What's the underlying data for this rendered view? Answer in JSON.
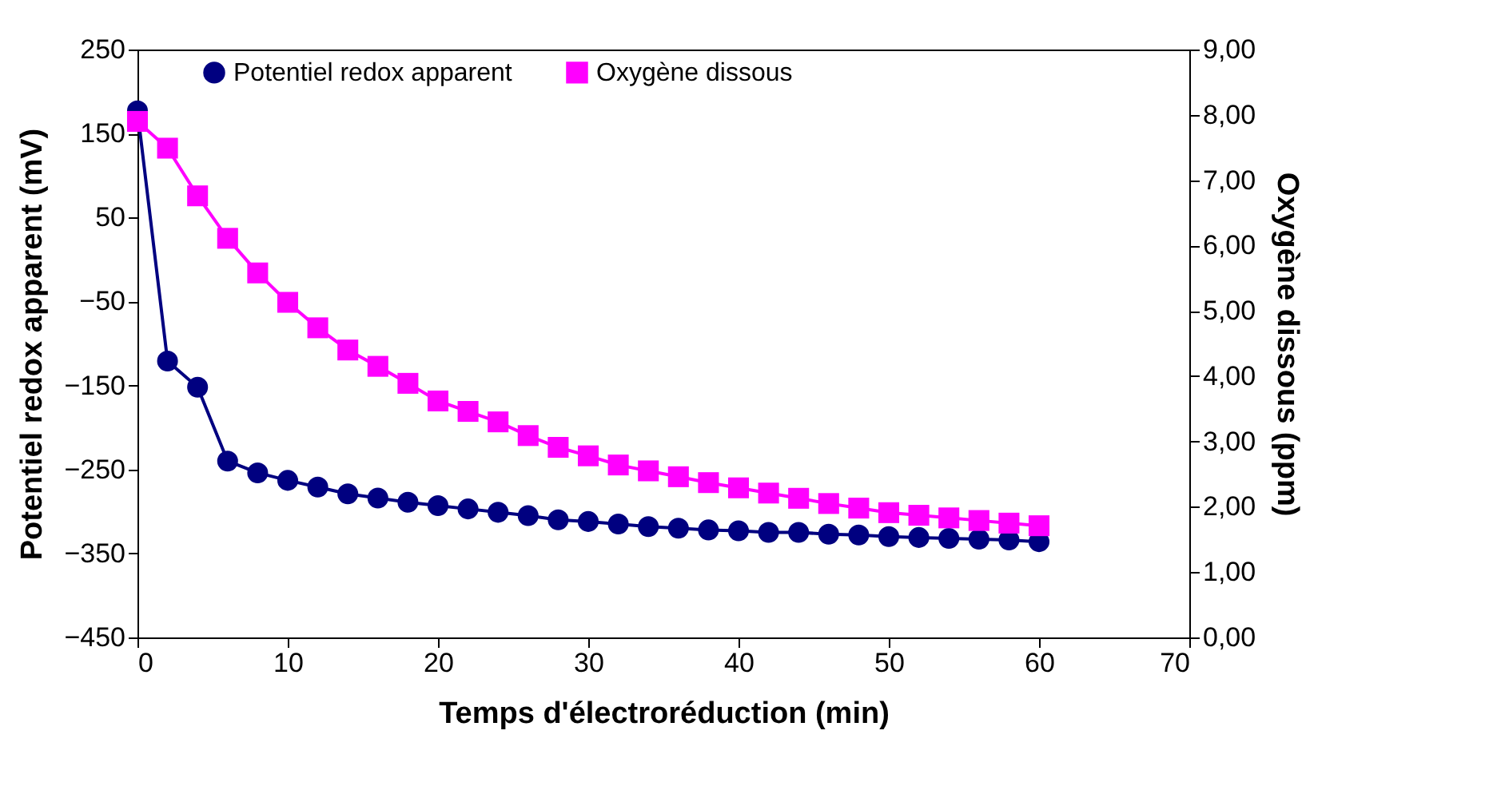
{
  "chart_data": {
    "type": "line",
    "xlabel": "Temps d'électroréduction (min)",
    "ylabel": "Potentiel redox apparent (mV)",
    "y2label": "Oxygène dissous (ppm)",
    "x": [
      0,
      2,
      4,
      6,
      8,
      10,
      12,
      14,
      16,
      18,
      20,
      22,
      24,
      26,
      28,
      30,
      32,
      34,
      36,
      38,
      40,
      42,
      44,
      46,
      48,
      50,
      52,
      54,
      56,
      58,
      60
    ],
    "series": [
      {
        "name": "Potentiel redox apparent",
        "color": "#000080",
        "marker": "circle",
        "values": [
          177,
          -121,
          -152,
          -240,
          -254,
          -263,
          -271,
          -279,
          -284,
          -289,
          -293,
          -297,
          -301,
          -305,
          -310,
          -312,
          -315,
          -318,
          -320,
          -322,
          -323,
          -325,
          -325,
          -327,
          -328,
          -330,
          -331,
          -332,
          -333,
          -334,
          -336
        ]
      },
      {
        "name": "Oxygène dissous",
        "color": "#ff00ff",
        "marker": "square",
        "axis": "y2",
        "values": [
          7.9,
          7.49,
          6.76,
          6.11,
          5.58,
          5.13,
          4.74,
          4.4,
          4.15,
          3.89,
          3.62,
          3.46,
          3.3,
          3.09,
          2.91,
          2.78,
          2.64,
          2.55,
          2.46,
          2.37,
          2.29,
          2.21,
          2.13,
          2.05,
          1.98,
          1.91,
          1.87,
          1.83,
          1.79,
          1.75,
          1.71
        ]
      }
    ],
    "xlim": [
      0,
      70
    ],
    "xticks": [
      0,
      10,
      20,
      30,
      40,
      50,
      60,
      70
    ],
    "ylim": [
      -450,
      250
    ],
    "yticks": [
      -450,
      -350,
      -250,
      -150,
      -50,
      50,
      150,
      250
    ],
    "y2lim": [
      0,
      9
    ],
    "y2ticks": [
      {
        "value": 0,
        "label": "0,00"
      },
      {
        "value": 1,
        "label": "1,00"
      },
      {
        "value": 2,
        "label": "2,00"
      },
      {
        "value": 3,
        "label": "3,00"
      },
      {
        "value": 4,
        "label": "4,00"
      },
      {
        "value": 5,
        "label": "5,00"
      },
      {
        "value": 6,
        "label": "6,00"
      },
      {
        "value": 7,
        "label": "7,00"
      },
      {
        "value": 8,
        "label": "8,00"
      },
      {
        "value": 9,
        "label": "9,00"
      }
    ],
    "grid": false,
    "legend": "top",
    "line_style": "solid"
  }
}
